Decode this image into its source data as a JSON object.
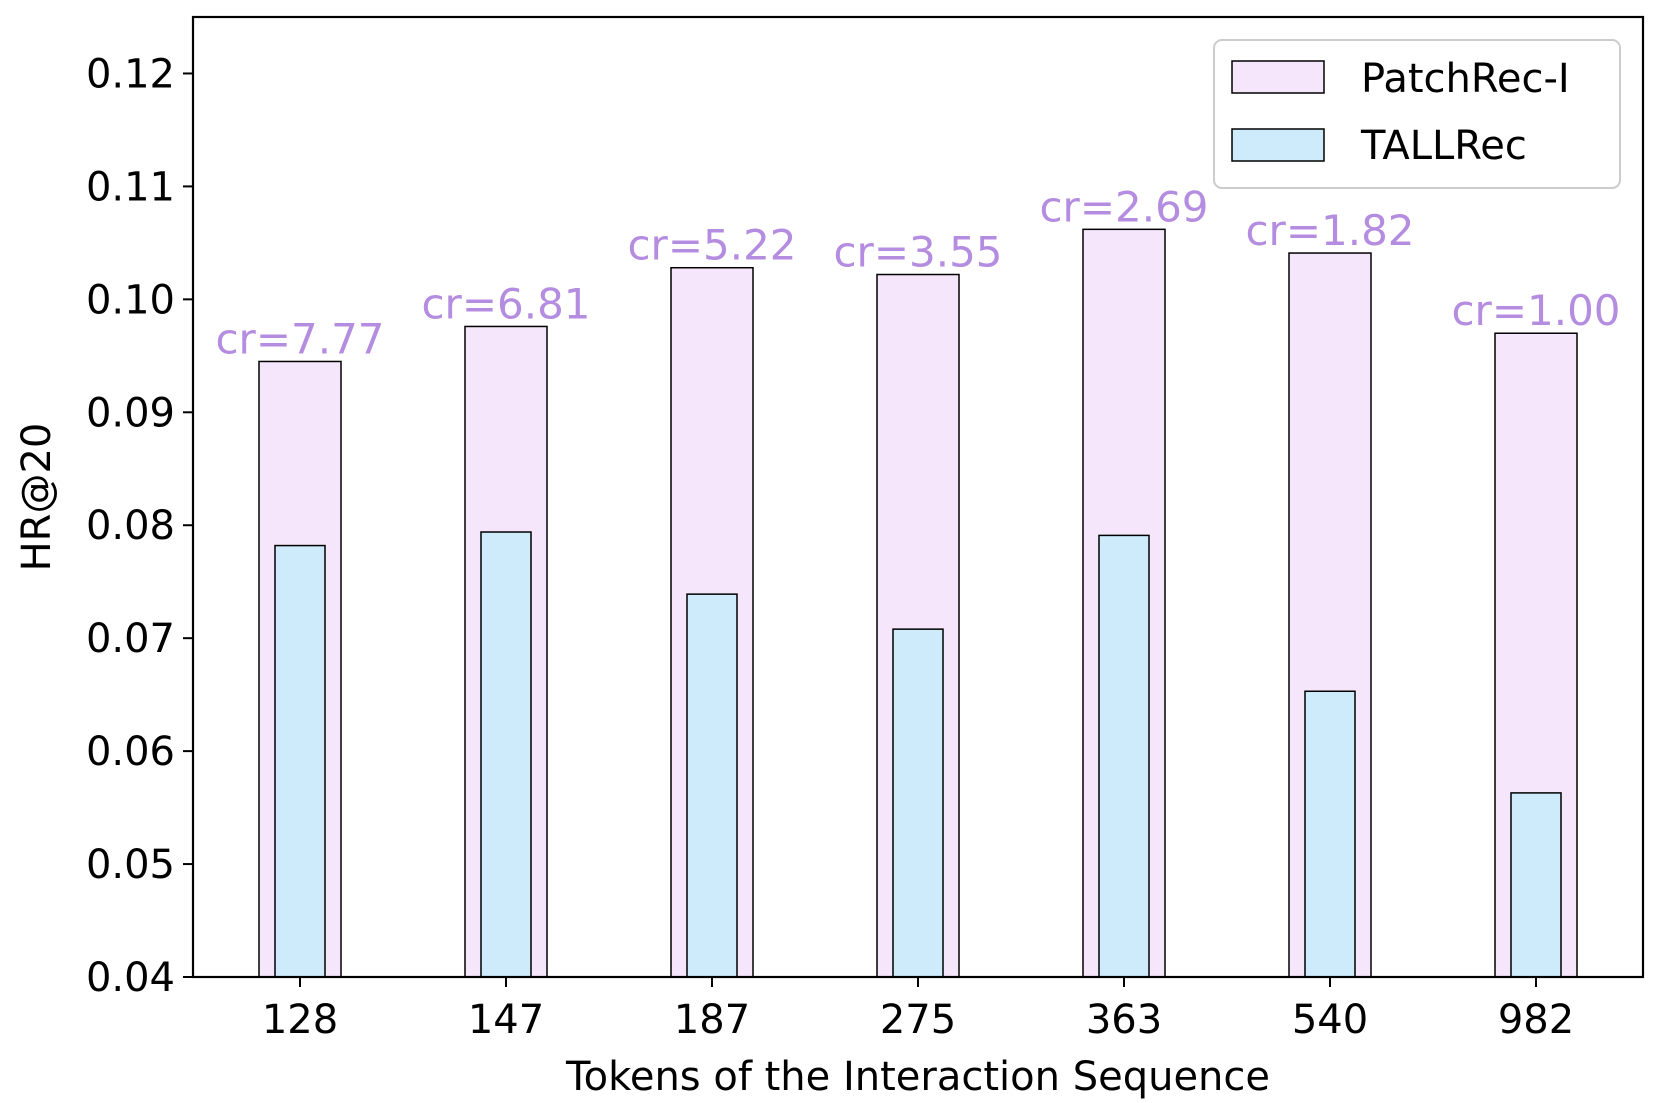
{
  "chart_data": {
    "type": "bar",
    "title": "",
    "xlabel": "Tokens of the Interaction Sequence",
    "ylabel": "HR@20",
    "ylim": [
      0.04,
      0.125
    ],
    "yticks": [
      "0.04",
      "0.05",
      "0.06",
      "0.07",
      "0.08",
      "0.09",
      "0.10",
      "0.11",
      "0.12"
    ],
    "ytick_values": [
      0.04,
      0.05,
      0.06,
      0.07,
      0.08,
      0.09,
      0.1,
      0.11,
      0.12
    ],
    "categories": [
      "128",
      "147",
      "187",
      "275",
      "363",
      "540",
      "982"
    ],
    "series": [
      {
        "name": "PatchRec-I",
        "values": [
          0.0945,
          0.0976,
          0.1028,
          0.1022,
          0.1062,
          0.1041,
          0.097
        ],
        "color": "#f5e6fb",
        "edge": "#000000"
      },
      {
        "name": "TALLRec",
        "values": [
          0.0782,
          0.0794,
          0.0739,
          0.0708,
          0.0791,
          0.0653,
          0.0563
        ],
        "color": "#cdebfb",
        "edge": "#000000"
      }
    ],
    "annotations": [
      "cr=7.77",
      "cr=6.81",
      "cr=5.22",
      "cr=3.55",
      "cr=2.69",
      "cr=1.82",
      "cr=1.00"
    ],
    "annotation_color": "#b48ce0",
    "legend": "top-right",
    "grid": false
  }
}
